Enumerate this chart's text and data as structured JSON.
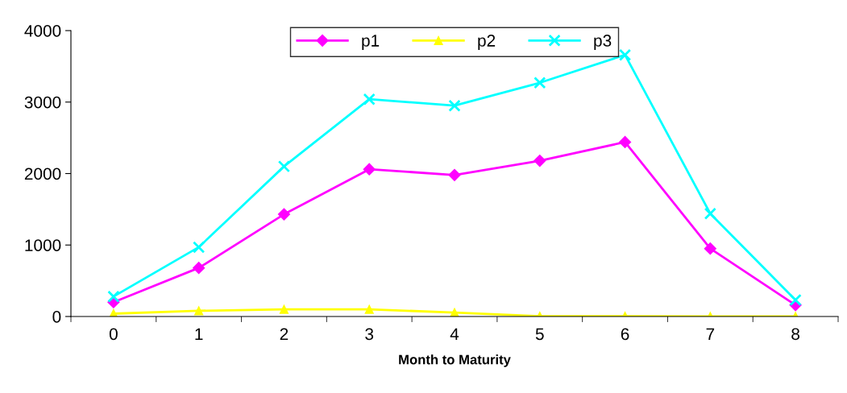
{
  "chart_data": {
    "type": "line",
    "xlabel": "Month to Maturity",
    "categories": [
      "0",
      "1",
      "2",
      "3",
      "4",
      "5",
      "6",
      "7",
      "8"
    ],
    "series": [
      {
        "name": "p1",
        "color": "#ff00ff",
        "marker": "diamond",
        "values": [
          200,
          680,
          1430,
          2060,
          1980,
          2180,
          2440,
          950,
          160
        ]
      },
      {
        "name": "p2",
        "color": "#ffff00",
        "marker": "triangle",
        "values": [
          40,
          80,
          100,
          100,
          55,
          5,
          5,
          0,
          0
        ]
      },
      {
        "name": "p3",
        "color": "#00ffff",
        "marker": "cross",
        "values": [
          280,
          970,
          2100,
          3040,
          2950,
          3270,
          3660,
          1440,
          230
        ]
      }
    ],
    "ylim": [
      0,
      4000
    ],
    "yticks": [
      0,
      1000,
      2000,
      3000,
      4000
    ],
    "grid": false,
    "legend": "top"
  }
}
